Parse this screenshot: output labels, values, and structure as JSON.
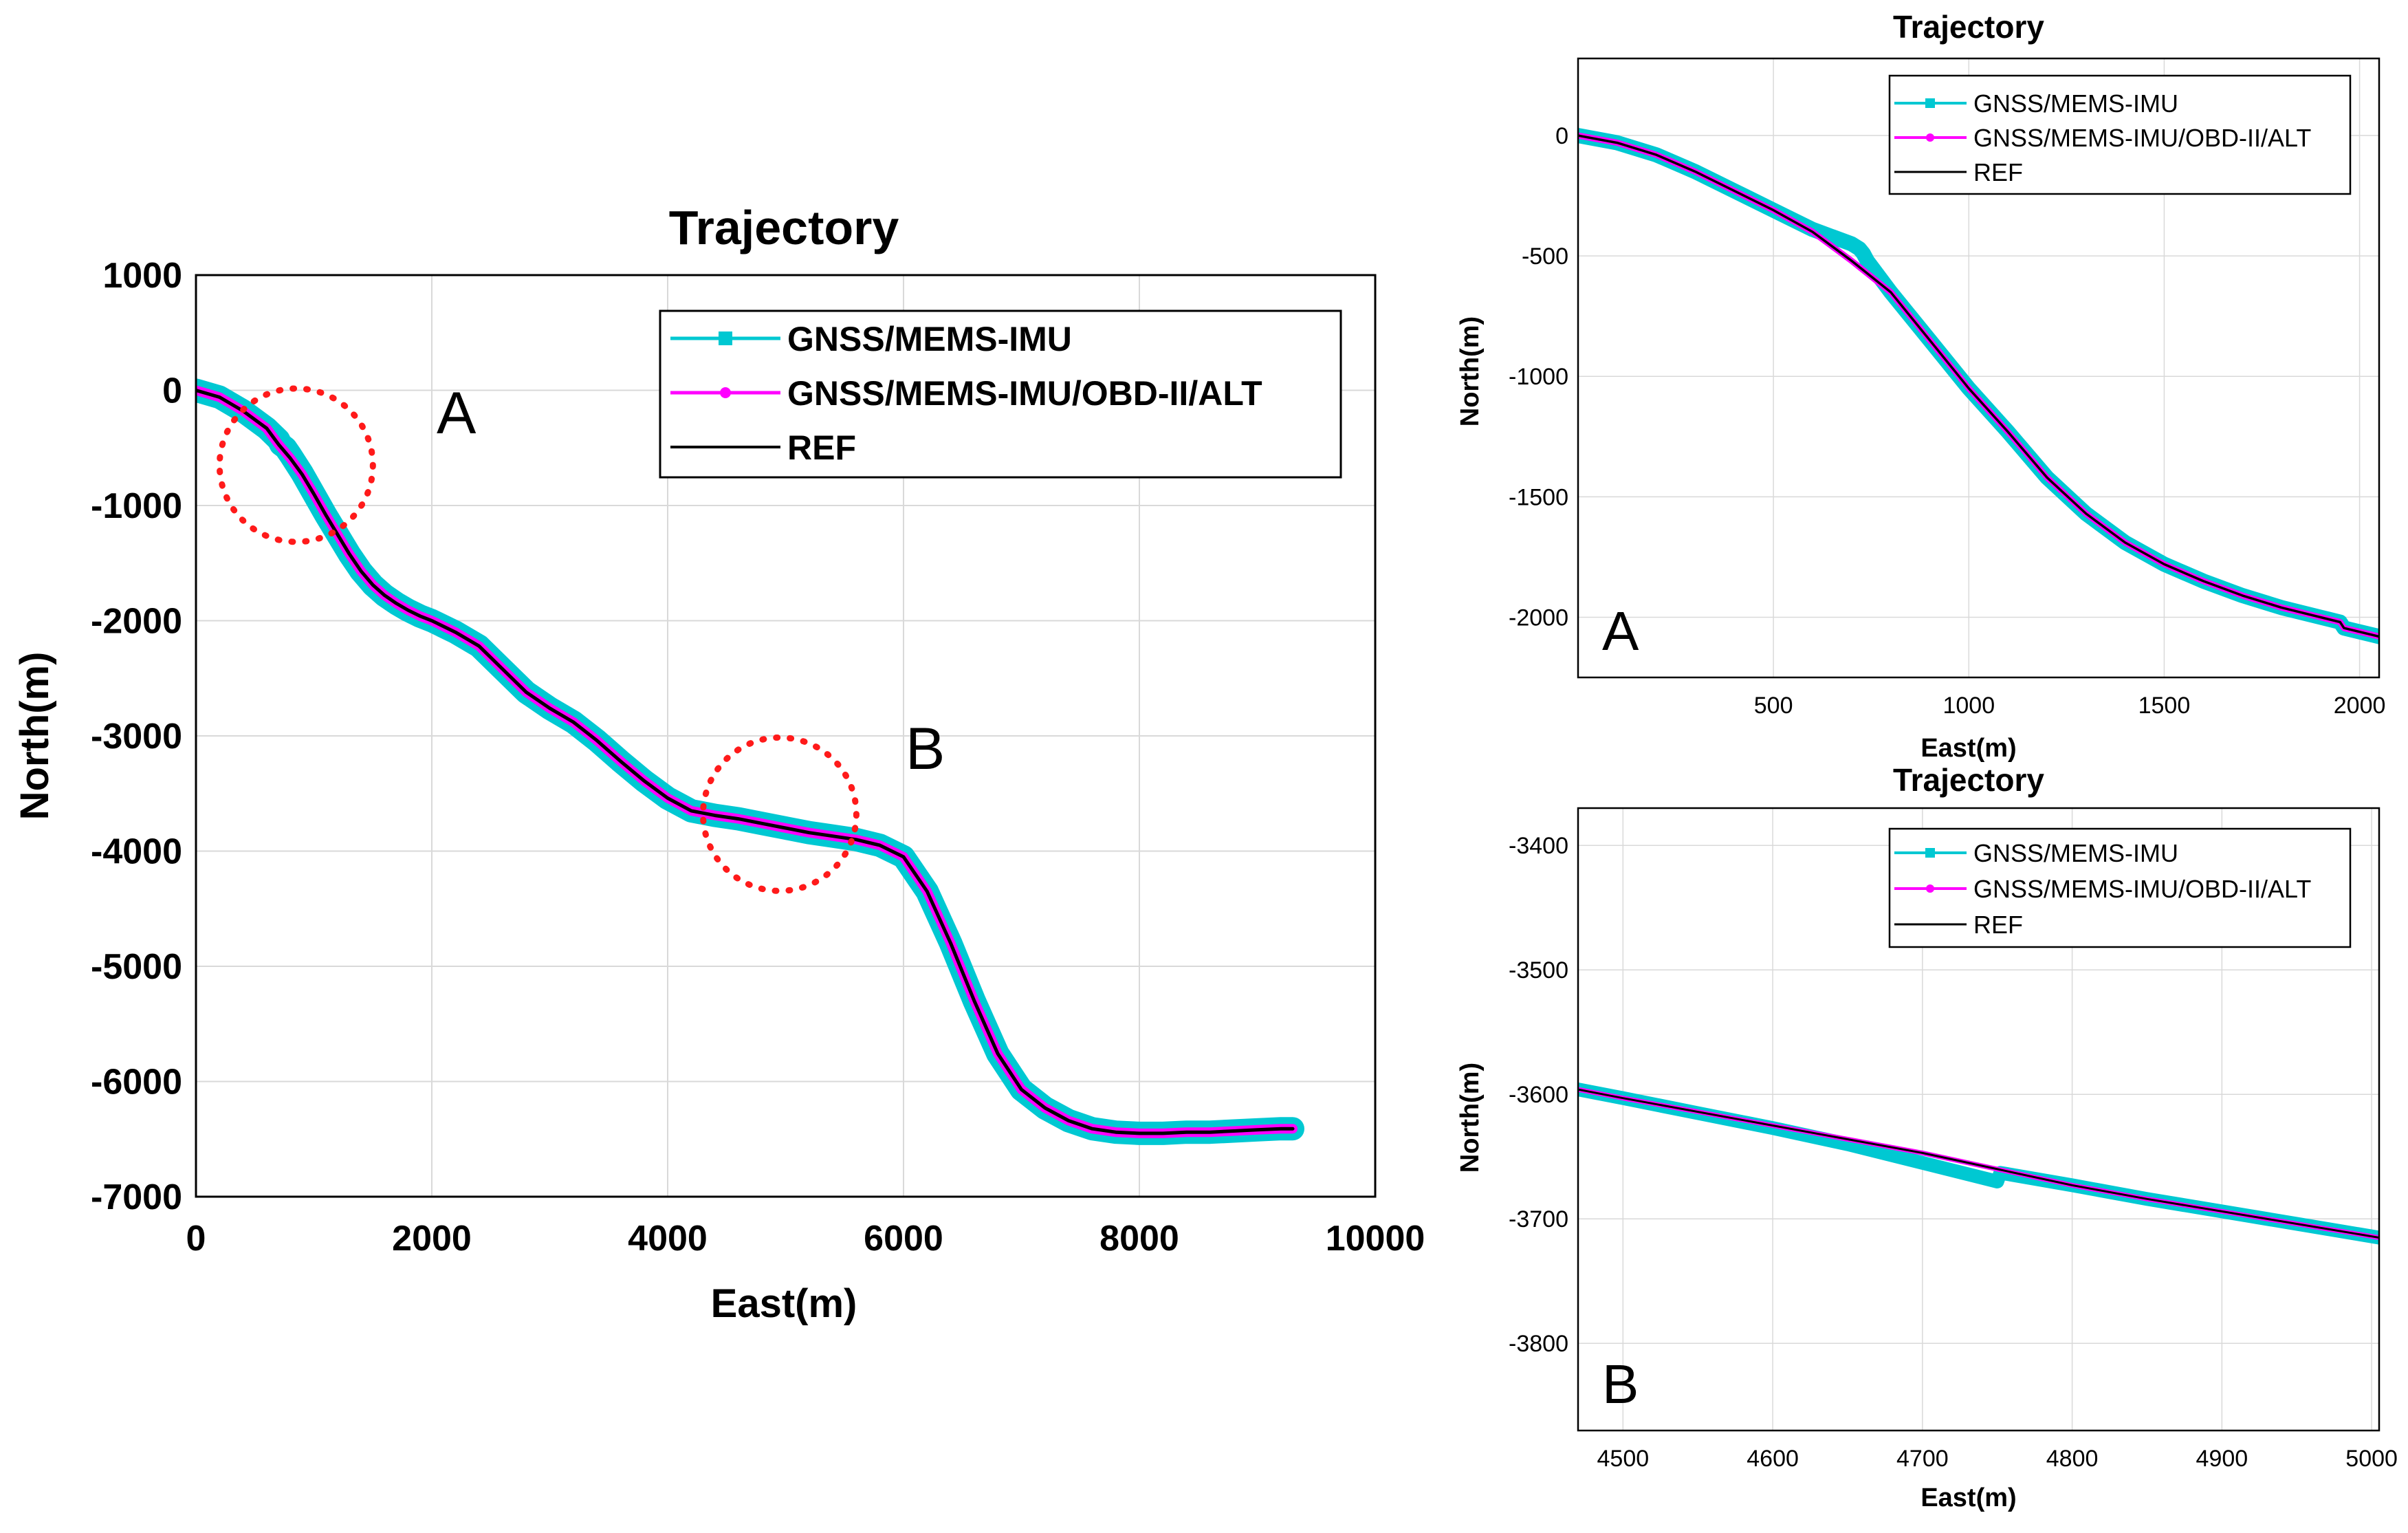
{
  "colors": {
    "gnss": "#00c8d2",
    "gnss_obd": "#ff00ff",
    "ref": "#000000",
    "grid": "#d9d9d9",
    "circle": "#ff1a1a"
  },
  "chart_data": [
    {
      "id": "main",
      "type": "line",
      "title": "Trajectory",
      "xlabel": "East(m)",
      "ylabel": "North(m)",
      "xlim": [
        0,
        10000
      ],
      "ylim": [
        -7000,
        1000
      ],
      "xticks": [
        0,
        2000,
        4000,
        6000,
        8000,
        10000
      ],
      "yticks": [
        1000,
        0,
        -1000,
        -2000,
        -3000,
        -4000,
        -5000,
        -6000,
        -7000
      ],
      "grid": true,
      "legend_position": "top-right",
      "legend": [
        "GNSS/MEMS-IMU",
        "GNSS/MEMS-IMU/OBD-II/ALT",
        "REF"
      ],
      "annotations": [
        {
          "label": "A",
          "circle_center": [
            850,
            -650
          ],
          "circle_radius_east": 650
        },
        {
          "label": "B",
          "circle_center": [
            4950,
            -3680
          ],
          "circle_radius_east": 650
        }
      ],
      "series": [
        {
          "name": "GNSS/MEMS-IMU",
          "x": [
            0,
            200,
            400,
            600,
            700,
            720,
            760,
            800,
            900,
            1000,
            1100,
            1200,
            1300,
            1400,
            1500,
            1600,
            1700,
            1800,
            1900,
            2000,
            2200,
            2400,
            2600,
            2800,
            3000,
            3200,
            3400,
            3600,
            3800,
            4000,
            4200,
            4400,
            4600,
            4800,
            5000,
            5200,
            5400,
            5600,
            5800,
            6000,
            6200,
            6400,
            6600,
            6800,
            7000,
            7200,
            7400,
            7600,
            7800,
            8000,
            8200,
            8400,
            8600,
            8800,
            9000,
            9200,
            9300
          ],
          "y": [
            0,
            -60,
            -180,
            -330,
            -430,
            -470,
            -500,
            -560,
            -720,
            -900,
            -1080,
            -1250,
            -1420,
            -1570,
            -1690,
            -1780,
            -1850,
            -1910,
            -1960,
            -2000,
            -2100,
            -2220,
            -2420,
            -2620,
            -2760,
            -2880,
            -3040,
            -3220,
            -3390,
            -3540,
            -3650,
            -3690,
            -3720,
            -3760,
            -3800,
            -3840,
            -3870,
            -3900,
            -3950,
            -4050,
            -4350,
            -4800,
            -5300,
            -5760,
            -6070,
            -6230,
            -6340,
            -6410,
            -6440,
            -6450,
            -6450,
            -6440,
            -6440,
            -6430,
            -6420,
            -6410,
            -6410
          ]
        },
        {
          "name": "GNSS/MEMS-IMU/OBD-II/ALT",
          "x": [
            0,
            200,
            400,
            600,
            700,
            800,
            900,
            1000,
            1100,
            1200,
            1300,
            1400,
            1500,
            1600,
            1700,
            1800,
            1900,
            2000,
            2200,
            2400,
            2600,
            2800,
            3000,
            3200,
            3400,
            3600,
            3800,
            4000,
            4200,
            4400,
            4600,
            4800,
            5000,
            5200,
            5400,
            5600,
            5800,
            6000,
            6200,
            6400,
            6600,
            6800,
            7000,
            7200,
            7400,
            7600,
            7800,
            8000,
            8200,
            8400,
            8600,
            8800,
            9000,
            9200,
            9300
          ],
          "y": [
            0,
            -60,
            -180,
            -330,
            -470,
            -590,
            -730,
            -900,
            -1080,
            -1250,
            -1420,
            -1570,
            -1690,
            -1780,
            -1850,
            -1910,
            -1960,
            -2000,
            -2100,
            -2220,
            -2420,
            -2620,
            -2760,
            -2880,
            -3040,
            -3220,
            -3390,
            -3540,
            -3650,
            -3690,
            -3720,
            -3760,
            -3800,
            -3840,
            -3870,
            -3900,
            -3950,
            -4050,
            -4350,
            -4800,
            -5300,
            -5760,
            -6070,
            -6230,
            -6340,
            -6410,
            -6440,
            -6450,
            -6450,
            -6440,
            -6440,
            -6430,
            -6420,
            -6410,
            -6410
          ]
        },
        {
          "name": "REF",
          "x": [
            0,
            200,
            400,
            600,
            700,
            800,
            900,
            1000,
            1100,
            1200,
            1300,
            1400,
            1500,
            1600,
            1700,
            1800,
            1900,
            2000,
            2200,
            2400,
            2600,
            2800,
            3000,
            3200,
            3400,
            3600,
            3800,
            4000,
            4200,
            4400,
            4600,
            4800,
            5000,
            5200,
            5400,
            5600,
            5800,
            6000,
            6200,
            6400,
            6600,
            6800,
            7000,
            7200,
            7400,
            7600,
            7800,
            8000,
            8200,
            8400,
            8600,
            8800,
            9000,
            9200,
            9300
          ],
          "y": [
            0,
            -60,
            -180,
            -330,
            -470,
            -590,
            -730,
            -900,
            -1080,
            -1250,
            -1420,
            -1570,
            -1690,
            -1780,
            -1850,
            -1910,
            -1960,
            -2000,
            -2100,
            -2220,
            -2420,
            -2620,
            -2760,
            -2880,
            -3040,
            -3220,
            -3390,
            -3540,
            -3650,
            -3690,
            -3720,
            -3760,
            -3800,
            -3840,
            -3870,
            -3900,
            -3950,
            -4050,
            -4350,
            -4800,
            -5300,
            -5760,
            -6070,
            -6230,
            -6340,
            -6410,
            -6440,
            -6450,
            -6450,
            -6440,
            -6440,
            -6430,
            -6420,
            -6410,
            -6410
          ]
        }
      ]
    },
    {
      "id": "zoomA",
      "type": "line",
      "title": "Trajectory",
      "xlabel": "East(m)",
      "ylabel": "North(m)",
      "panel_label": "A",
      "xlim": [
        0,
        2050
      ],
      "ylim": [
        -2250,
        320
      ],
      "xticks": [
        500,
        1000,
        1500,
        2000
      ],
      "yticks": [
        0,
        -500,
        -1000,
        -1500,
        -2000
      ],
      "grid": true,
      "legend_position": "top-right",
      "legend": [
        "GNSS/MEMS-IMU",
        "GNSS/MEMS-IMU/OBD-II/ALT",
        "REF"
      ],
      "series": [
        {
          "name": "GNSS/MEMS-IMU",
          "x": [
            0,
            100,
            200,
            300,
            400,
            500,
            600,
            650,
            700,
            720,
            730,
            740,
            800,
            900,
            1000,
            1100,
            1200,
            1300,
            1400,
            1500,
            1600,
            1700,
            1800,
            1900,
            1950,
            1960,
            2050
          ],
          "y": [
            0,
            -30,
            -80,
            -150,
            -230,
            -310,
            -390,
            -420,
            -450,
            -470,
            -490,
            -520,
            -650,
            -850,
            -1050,
            -1230,
            -1420,
            -1570,
            -1690,
            -1780,
            -1850,
            -1910,
            -1960,
            -2000,
            -2020,
            -2045,
            -2080
          ]
        },
        {
          "name": "GNSS/MEMS-IMU/OBD-II/ALT",
          "x": [
            0,
            100,
            200,
            300,
            400,
            500,
            600,
            700,
            800,
            900,
            1000,
            1100,
            1200,
            1300,
            1400,
            1500,
            1600,
            1700,
            1800,
            1900,
            1950,
            1960,
            2050
          ],
          "y": [
            0,
            -30,
            -80,
            -150,
            -230,
            -310,
            -400,
            -520,
            -650,
            -850,
            -1050,
            -1230,
            -1420,
            -1570,
            -1690,
            -1780,
            -1850,
            -1910,
            -1960,
            -2000,
            -2020,
            -2045,
            -2080
          ]
        },
        {
          "name": "REF",
          "x": [
            0,
            100,
            200,
            300,
            400,
            500,
            600,
            700,
            800,
            900,
            1000,
            1100,
            1200,
            1300,
            1400,
            1500,
            1600,
            1700,
            1800,
            1900,
            1950,
            1960,
            2050
          ],
          "y": [
            0,
            -30,
            -80,
            -150,
            -230,
            -310,
            -400,
            -520,
            -650,
            -850,
            -1050,
            -1230,
            -1420,
            -1570,
            -1690,
            -1780,
            -1850,
            -1910,
            -1960,
            -2000,
            -2020,
            -2045,
            -2080
          ]
        }
      ]
    },
    {
      "id": "zoomB",
      "type": "line",
      "title": "Trajectory",
      "xlabel": "East(m)",
      "ylabel": "North(m)",
      "panel_label": "B",
      "xlim": [
        4470,
        5005
      ],
      "ylim": [
        -3870,
        -3370
      ],
      "xticks": [
        4500,
        4600,
        4700,
        4800,
        4900,
        5000
      ],
      "yticks": [
        -3400,
        -3500,
        -3600,
        -3700,
        -3800
      ],
      "grid": true,
      "legend_position": "top-right",
      "legend": [
        "GNSS/MEMS-IMU",
        "GNSS/MEMS-IMU/OBD-II/ALT",
        "REF"
      ],
      "series": [
        {
          "name": "GNSS/MEMS-IMU",
          "x": [
            4470,
            4500,
            4550,
            4600,
            4650,
            4700,
            4720,
            4740,
            4750,
            4752,
            4800,
            4850,
            4900,
            4950,
            5005
          ],
          "y": [
            -3596,
            -3603,
            -3615,
            -3627,
            -3640,
            -3655,
            -3661,
            -3667,
            -3670,
            -3663,
            -3673,
            -3684,
            -3694,
            -3704,
            -3715
          ]
        },
        {
          "name": "GNSS/MEMS-IMU/OBD-II/ALT",
          "x": [
            4470,
            4500,
            4550,
            4600,
            4650,
            4700,
            4750,
            4800,
            4850,
            4900,
            4950,
            5005
          ],
          "y": [
            -3596,
            -3603,
            -3614,
            -3625,
            -3636,
            -3647,
            -3660,
            -3673,
            -3684,
            -3694,
            -3704,
            -3715
          ]
        },
        {
          "name": "REF",
          "x": [
            4470,
            4500,
            4550,
            4600,
            4650,
            4700,
            4750,
            4800,
            4850,
            4900,
            4950,
            5005
          ],
          "y": [
            -3596,
            -3603,
            -3614,
            -3625,
            -3636,
            -3647,
            -3660,
            -3673,
            -3684,
            -3694,
            -3704,
            -3715
          ]
        }
      ]
    }
  ]
}
